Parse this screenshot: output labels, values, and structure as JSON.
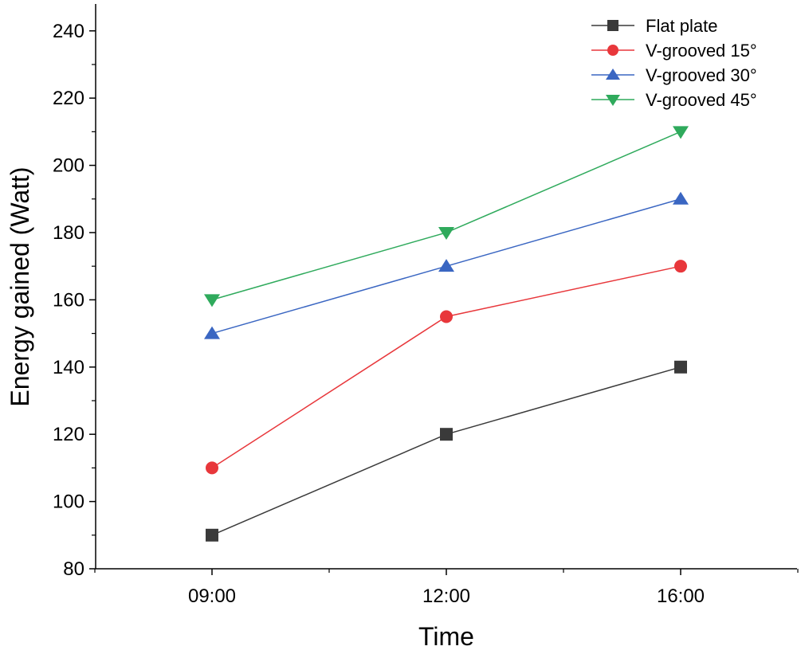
{
  "chart_data": {
    "type": "line",
    "title": "",
    "xlabel": "Time",
    "ylabel": "Energy gained (Watt)",
    "categories": [
      "09:00",
      "12:00",
      "16:00"
    ],
    "ylim": [
      80,
      248
    ],
    "yticks": [
      80,
      100,
      120,
      140,
      160,
      180,
      200,
      220,
      240
    ],
    "ytick_labels": [
      "80",
      "100",
      "120",
      "140",
      "160",
      "180",
      "200",
      "220",
      "240"
    ],
    "legend_position": "top-right",
    "grid": false,
    "series": [
      {
        "name": "Flat plate",
        "values": [
          90,
          120,
          140
        ],
        "color": "#3a3a3a",
        "marker": "square"
      },
      {
        "name": "V-grooved 15°",
        "values": [
          110,
          155,
          170
        ],
        "color": "#e8373b",
        "marker": "circle"
      },
      {
        "name": "V-grooved 30°",
        "values": [
          150,
          170,
          190
        ],
        "color": "#3a66c2",
        "marker": "triangle-up"
      },
      {
        "name": "V-grooved 45°",
        "values": [
          160,
          180,
          210
        ],
        "color": "#2faa5c",
        "marker": "triangle-down"
      }
    ]
  }
}
